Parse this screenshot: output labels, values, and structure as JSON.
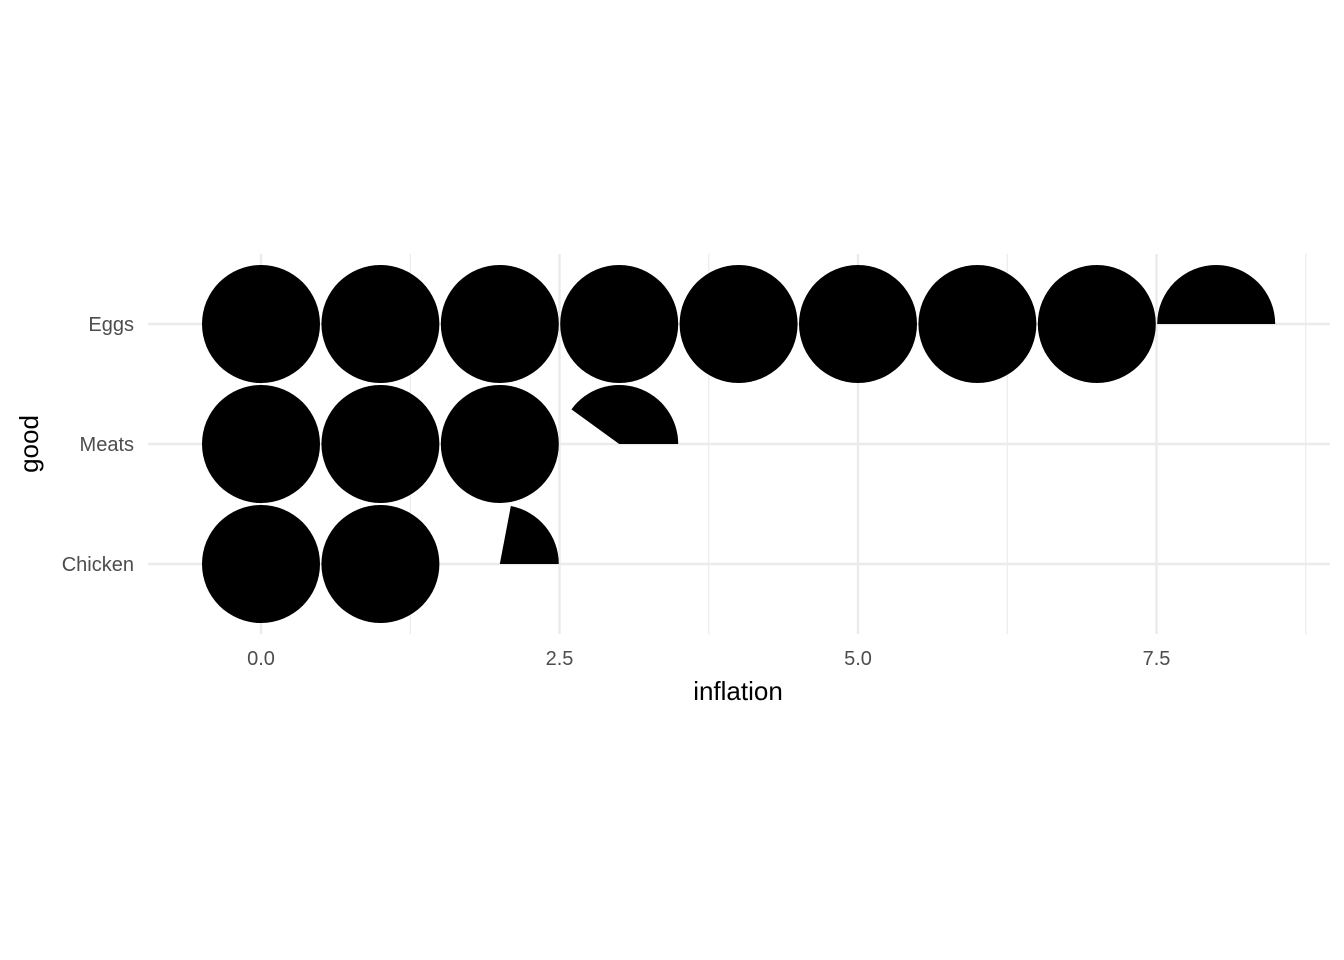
{
  "chart_data": {
    "type": "pictogram",
    "xlabel": "inflation",
    "ylabel": "good",
    "xlim": [
      -0.95,
      8.95
    ],
    "x_ticks": [
      "0.0",
      "2.5",
      "5.0",
      "7.5"
    ],
    "x_tick_values": [
      0,
      2.5,
      5,
      7.5
    ],
    "categories": [
      "Eggs",
      "Meats",
      "Chicken"
    ],
    "values": [
      8.5,
      3.4,
      2.22
    ],
    "grid": true,
    "colors": {
      "marker": "#000000",
      "grid": "#ebebeb",
      "tick_text": "#4d4d4d",
      "axis_text": "#000000"
    }
  }
}
